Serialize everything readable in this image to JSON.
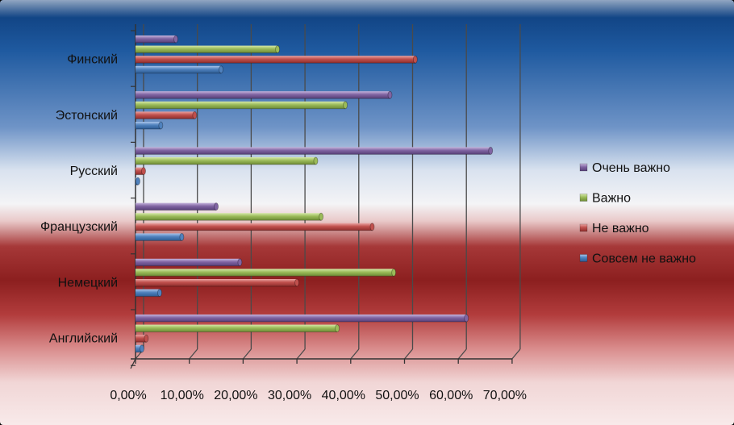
{
  "chart_data": {
    "type": "bar",
    "orientation": "horizontal",
    "categories": [
      "Английский",
      "Немецкий",
      "Французский",
      "Русский",
      "Эстонский",
      "Финский"
    ],
    "series": [
      {
        "name": "Совсем не важно",
        "color": "#4f81bd",
        "values": [
          1.2,
          4.5,
          8.6,
          0.4,
          4.7,
          15.9
        ]
      },
      {
        "name": "Не важно",
        "color": "#c0504d",
        "values": [
          2.0,
          30.0,
          44.0,
          1.5,
          11.0,
          52.0
        ]
      },
      {
        "name": "Важно",
        "color": "#9bbb59",
        "values": [
          37.5,
          48.0,
          34.5,
          33.5,
          39.0,
          26.4
        ]
      },
      {
        "name": "Очень важно",
        "color": "#8064a2",
        "values": [
          61.5,
          19.4,
          15.0,
          66.0,
          47.3,
          7.5
        ]
      }
    ],
    "xticks": [
      "0,00%",
      "10,00%",
      "20,00%",
      "30,00%",
      "40,00%",
      "50,00%",
      "60,00%",
      "70,00%"
    ],
    "xlim": [
      0,
      70
    ],
    "grid": true,
    "legend_position": "right"
  }
}
